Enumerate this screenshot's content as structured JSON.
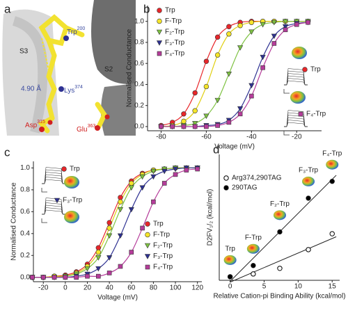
{
  "panel_a": {
    "label": "a",
    "labels": [
      {
        "text": "S3"
      },
      {
        "text": "S2"
      },
      {
        "text": "Trp",
        "sup": "200"
      },
      {
        "text": "4.90 Å"
      },
      {
        "text": "Lys",
        "sup": "374"
      },
      {
        "text": "Asp",
        "sup": "315"
      },
      {
        "text": "Glu",
        "sup": "363"
      }
    ]
  },
  "chart_data": [
    {
      "type": "line",
      "panel_label": "b",
      "x_label": "Voltage (mV)",
      "y_label": "Normalised Conductance",
      "x": [
        -80,
        -75,
        -70,
        -65,
        -60,
        -55,
        -50,
        -45,
        -40,
        -35,
        -30,
        -25,
        -20,
        -15
      ],
      "series": [
        {
          "name": "Trp",
          "color": "#e8262a",
          "marker": "circle",
          "values": [
            0.01,
            0.04,
            0.12,
            0.32,
            0.62,
            0.85,
            0.95,
            0.99,
            1.0,
            1.0,
            1.0,
            1.0,
            1.0,
            1.0
          ]
        },
        {
          "name": "F-Trp",
          "color": "#f5e52a",
          "marker": "circle",
          "values": [
            0.0,
            0.01,
            0.05,
            0.15,
            0.38,
            0.68,
            0.88,
            0.96,
            0.99,
            1.0,
            1.0,
            1.0,
            1.0,
            1.0
          ]
        },
        {
          "name": "F₂-Trp",
          "color": "#7ec242",
          "marker": "triangle-down",
          "values": [
            0.0,
            0.0,
            0.01,
            0.03,
            0.1,
            0.25,
            0.5,
            0.75,
            0.9,
            0.97,
            0.99,
            1.0,
            1.0,
            1.0
          ]
        },
        {
          "name": "F₃-Trp",
          "color": "#2e3192",
          "marker": "triangle-down",
          "values": [
            0.0,
            0.0,
            0.0,
            0.0,
            0.01,
            0.02,
            0.06,
            0.17,
            0.39,
            0.66,
            0.86,
            0.95,
            0.98,
            0.99
          ]
        },
        {
          "name": "F₄-Trp",
          "color": "#b53c9a",
          "marker": "square",
          "values": [
            0.0,
            0.0,
            0.0,
            0.0,
            0.0,
            0.01,
            0.04,
            0.12,
            0.29,
            0.56,
            0.79,
            0.92,
            0.97,
            0.99
          ]
        }
      ],
      "xlim": [
        -86,
        -9
      ],
      "xticks": [
        -80,
        -60,
        -40,
        -20
      ],
      "ylim": [
        -0.04,
        1.15
      ],
      "yticks": [
        {
          "value": 0,
          "label": "0.0"
        },
        0.2,
        0.4,
        0.6,
        0.8,
        {
          "value": 1,
          "label": "1.0"
        }
      ],
      "legend": "upper left",
      "inset_labels": [
        "Trp",
        "F₄-Trp"
      ]
    },
    {
      "type": "line",
      "panel_label": "c",
      "x_label": "Voltage (mV)",
      "y_label": "Normalised Conductance",
      "x": [
        -30,
        -20,
        -10,
        0,
        10,
        20,
        30,
        40,
        50,
        60,
        70,
        80,
        90,
        100,
        110,
        120
      ],
      "series": [
        {
          "name": "Trp",
          "color": "#e8262a",
          "marker": "circle",
          "values": [
            0.0,
            0.0,
            0.01,
            0.02,
            0.05,
            0.12,
            0.27,
            0.5,
            0.73,
            0.88,
            0.95,
            0.98,
            0.99,
            1.0,
            1.0,
            1.0
          ]
        },
        {
          "name": "F-Trp",
          "color": "#f5e52a",
          "marker": "circle",
          "values": [
            0.0,
            0.0,
            0.01,
            0.01,
            0.04,
            0.1,
            0.23,
            0.45,
            0.69,
            0.86,
            0.94,
            0.98,
            0.99,
            1.0,
            1.0,
            1.0
          ]
        },
        {
          "name": "F₂-Trp",
          "color": "#7ec242",
          "marker": "triangle-down",
          "values": [
            0.0,
            0.0,
            0.0,
            0.01,
            0.03,
            0.08,
            0.18,
            0.38,
            0.62,
            0.82,
            0.92,
            0.97,
            0.99,
            1.0,
            1.0,
            1.0
          ]
        },
        {
          "name": "F₃-Trp",
          "color": "#2e3192",
          "marker": "triangle-down",
          "values": [
            0.0,
            0.0,
            0.0,
            0.0,
            0.01,
            0.03,
            0.08,
            0.18,
            0.38,
            0.62,
            0.82,
            0.92,
            0.97,
            0.99,
            1.0,
            1.0
          ]
        },
        {
          "name": "F₄-Trp",
          "color": "#b53c9a",
          "marker": "square",
          "values": [
            0.0,
            0.0,
            0.0,
            0.0,
            0.0,
            0.01,
            0.01,
            0.04,
            0.1,
            0.23,
            0.45,
            0.69,
            0.86,
            0.94,
            0.98,
            0.99
          ]
        }
      ],
      "xlim": [
        -29,
        124
      ],
      "xticks": [
        -20,
        0,
        20,
        40,
        60,
        80,
        100,
        120
      ],
      "ylim": [
        -0.04,
        1.06
      ],
      "yticks": [
        {
          "value": 0,
          "label": "0.0"
        },
        0.2,
        0.4,
        0.6,
        0.8,
        {
          "value": 1,
          "label": "1.0"
        }
      ],
      "legend": "lower right",
      "inset_labels": [
        "Trp",
        "F₃-Trp"
      ]
    },
    {
      "type": "scatter",
      "panel_label": "d",
      "x_label": "Relative Cation-pi Binding Ability (kcal/mol)",
      "y_label": "D2FV₁/₂ (kcal/mol)",
      "x": [
        0,
        3.4,
        7.3,
        11.5,
        15
      ],
      "series": [
        {
          "name": "Arg374,290TAG",
          "color": "#000000",
          "marker": "circle-open",
          "values": [
            0,
            0.15,
            0.45,
            1.45,
            2.3
          ]
        },
        {
          "name": "290TAG",
          "color": "#000000",
          "marker": "circle",
          "values": [
            0,
            0.6,
            2.4,
            4.2,
            5.1
          ]
        }
      ],
      "point_labels": [
        "Trp",
        "F-Trp",
        "F₂-Trp",
        "F₃-Trp",
        "F₄-Trp"
      ],
      "xlim": [
        -1.6,
        16.1
      ],
      "xticks": [
        0,
        5,
        10,
        15
      ],
      "ylim": [
        -0.19,
        6.54
      ],
      "legend": "upper left",
      "fit_lines": true
    }
  ]
}
